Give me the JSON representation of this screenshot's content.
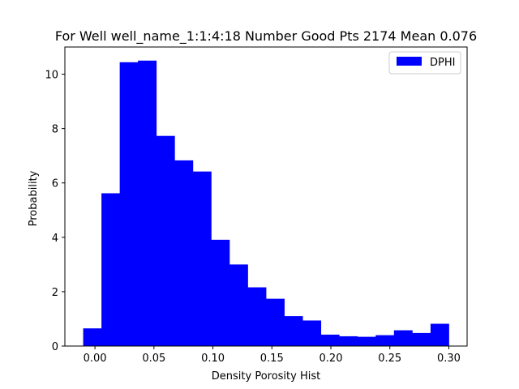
{
  "chart_data": {
    "type": "bar",
    "title": "For Well well_name_1:1:4:18 Number Good Pts 2174 Mean 0.076",
    "xlabel": "Density Porosity Hist",
    "ylabel": "Probability",
    "xlim": [
      -0.0255,
      0.3155
    ],
    "ylim": [
      0,
      11.0
    ],
    "xticks": [
      0.0,
      0.05,
      0.1,
      0.15,
      0.2,
      0.25,
      0.3
    ],
    "xtick_labels": [
      "0.00",
      "0.05",
      "0.10",
      "0.15",
      "0.20",
      "0.25",
      "0.30"
    ],
    "yticks": [
      0,
      2,
      4,
      6,
      8,
      10
    ],
    "ytick_labels": [
      "0",
      "2",
      "4",
      "6",
      "8",
      "10"
    ],
    "bin_edges": [
      -0.01,
      0.0055,
      0.021,
      0.0365,
      0.052,
      0.0675,
      0.083,
      0.0985,
      0.114,
      0.1295,
      0.145,
      0.1605,
      0.176,
      0.1915,
      0.207,
      0.2225,
      0.238,
      0.2535,
      0.269,
      0.2845,
      0.3
    ],
    "values": [
      0.65,
      5.62,
      10.44,
      10.5,
      7.73,
      6.83,
      6.42,
      3.91,
      3.0,
      2.16,
      1.74,
      1.1,
      0.94,
      0.42,
      0.36,
      0.34,
      0.4,
      0.58,
      0.48,
      0.82
    ],
    "series": [
      {
        "name": "DPHI",
        "color": "#0000ff"
      }
    ],
    "legend_position": "top-right",
    "grid": false
  }
}
